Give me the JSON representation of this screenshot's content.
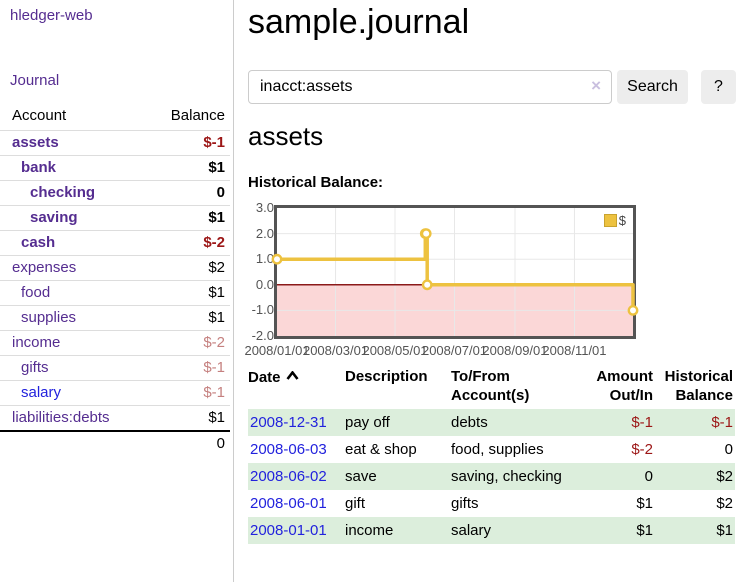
{
  "app": {
    "title": "hledger-web",
    "nav_journal": "Journal"
  },
  "sidebar": {
    "header": {
      "account": "Account",
      "balance": "Balance"
    },
    "accounts": [
      {
        "name": "assets",
        "depth": 1,
        "bold": true,
        "link": "purple",
        "balance": "$-1",
        "tone": "neg-strong"
      },
      {
        "name": "bank",
        "depth": 2,
        "bold": true,
        "link": "purple",
        "balance": "$1",
        "tone": "normal"
      },
      {
        "name": "checking",
        "depth": 3,
        "bold": true,
        "link": "purple",
        "balance": "0",
        "tone": "normal"
      },
      {
        "name": "saving",
        "depth": 3,
        "bold": true,
        "link": "purple",
        "balance": "$1",
        "tone": "normal"
      },
      {
        "name": "cash",
        "depth": 2,
        "bold": true,
        "link": "purple",
        "balance": "$-2",
        "tone": "neg-strong"
      },
      {
        "name": "expenses",
        "depth": 1,
        "bold": false,
        "link": "purple",
        "balance": "$2",
        "tone": "normal"
      },
      {
        "name": "food",
        "depth": 2,
        "bold": false,
        "link": "purple",
        "balance": "$1",
        "tone": "normal"
      },
      {
        "name": "supplies",
        "depth": 2,
        "bold": false,
        "link": "purple",
        "balance": "$1",
        "tone": "normal"
      },
      {
        "name": "income",
        "depth": 1,
        "bold": false,
        "link": "purple",
        "balance": "$-2",
        "tone": "neg-light"
      },
      {
        "name": "gifts",
        "depth": 2,
        "bold": false,
        "link": "purple",
        "balance": "$-1",
        "tone": "neg-light"
      },
      {
        "name": "salary",
        "depth": 2,
        "bold": false,
        "link": "blue",
        "balance": "$-1",
        "tone": "neg-light"
      },
      {
        "name": "liabilities:debts",
        "depth": 1,
        "bold": false,
        "link": "purple",
        "balance": "$1",
        "tone": "normal"
      }
    ],
    "total": "0"
  },
  "main": {
    "title": "sample.journal",
    "search": {
      "value": "inacct:assets",
      "clear_icon": "×",
      "button": "Search",
      "help_button": "?"
    },
    "account_heading": "assets",
    "chart_label": "Historical Balance:"
  },
  "chart_data": {
    "type": "line",
    "step": true,
    "title": "Historical Balance",
    "series": [
      {
        "name": "$",
        "color": "#edc240",
        "points": [
          [
            "2008-01-01",
            1
          ],
          [
            "2008-06-01",
            2
          ],
          [
            "2008-06-02",
            2
          ],
          [
            "2008-06-03",
            0
          ],
          [
            "2008-12-31",
            -1
          ]
        ]
      }
    ],
    "x_ticks": [
      "2008/01/01",
      "2008/03/01",
      "2008/05/01",
      "2008/07/01",
      "2008/09/01",
      "2008/11/01"
    ],
    "y_ticks": [
      "3.0",
      "2.0",
      "1.0",
      "0.0",
      "-1.0",
      "-2.0"
    ],
    "xlim": [
      "2008/01/01",
      "2008/12/31"
    ],
    "ylim": [
      -2,
      3
    ],
    "legend": "$",
    "legend_position": "top-right",
    "grid": true,
    "negative_fill": "#fbd7d7",
    "zero_line_color": "#8b1a1a",
    "border_color": "#545454"
  },
  "register": {
    "columns": [
      "Date",
      "Description",
      "To/From Account(s)",
      "Amount Out/In",
      "Historical Balance"
    ],
    "rows": [
      {
        "date": "2008-12-31",
        "description": "pay off",
        "accounts": "debts",
        "amount": "$-1",
        "amount_tone": "neg-strong",
        "balance": "$-1",
        "balance_tone": "neg-strong"
      },
      {
        "date": "2008-06-03",
        "description": "eat & shop",
        "accounts": "food, supplies",
        "amount": "$-2",
        "amount_tone": "neg-strong",
        "balance": "0",
        "balance_tone": "normal"
      },
      {
        "date": "2008-06-02",
        "description": "save",
        "accounts": "saving, checking",
        "amount": "0",
        "amount_tone": "normal",
        "balance": "$2",
        "balance_tone": "normal"
      },
      {
        "date": "2008-06-01",
        "description": "gift",
        "accounts": "gifts",
        "amount": "$1",
        "amount_tone": "normal",
        "balance": "$2",
        "balance_tone": "normal"
      },
      {
        "date": "2008-01-01",
        "description": "income",
        "accounts": "salary",
        "amount": "$1",
        "amount_tone": "normal",
        "balance": "$1",
        "balance_tone": "normal"
      }
    ]
  }
}
